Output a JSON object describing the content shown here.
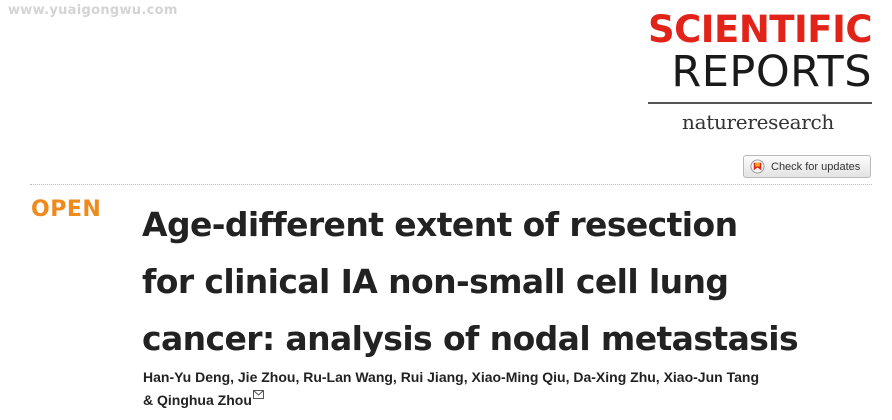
{
  "watermark": "www.yuaigongwu.com",
  "journal": {
    "name_line1": "SCIENTIFIC",
    "name_line2": "REPORTS",
    "publisher": "natureresearch"
  },
  "check_updates": {
    "label": "Check for updates",
    "icon": "crossmark-icon"
  },
  "article": {
    "access_label": "OPEN",
    "title_lines": [
      "Age-different extent of resection",
      "for clinical IA non-small cell lung",
      "cancer: analysis of nodal metastasis"
    ],
    "author_lines": [
      "Han-Yu Deng, Jie Zhou, Ru-Lan Wang, Rui Jiang, Xiao-Ming Qiu, Da-Xing Zhu, Xiao-Jun Tang",
      "& Qinghua Zhou"
    ],
    "corresponding_icon": "envelope-icon"
  },
  "colors": {
    "brand_red": "#e2231a",
    "open_orange": "#ef8a1c",
    "text_dark": "#222222"
  }
}
